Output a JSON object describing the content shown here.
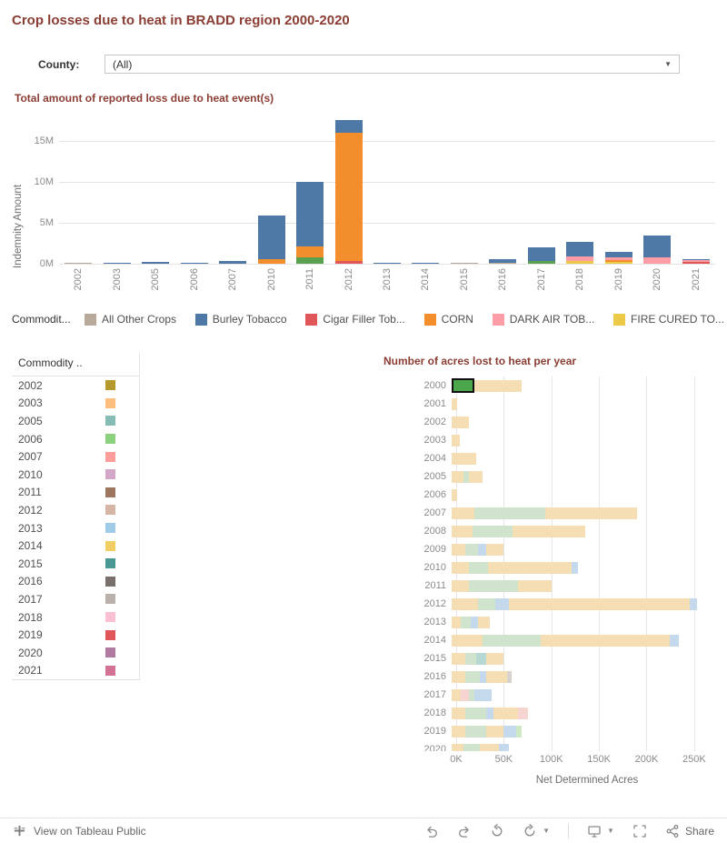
{
  "title": "Crop losses due to heat in BRADD region 2000-2020",
  "filter": {
    "label": "County:",
    "value": "(All)"
  },
  "toolbar": {
    "view_label": "View on Tableau Public",
    "share_label": "Share"
  },
  "commodity_legend": {
    "title": "Commodit...",
    "items": [
      {
        "label": "All Other Crops",
        "color": "#b9a99b"
      },
      {
        "label": "Burley Tobacco",
        "color": "#4e79a7"
      },
      {
        "label": "Cigar Filler Tob...",
        "color": "#e15759"
      },
      {
        "label": "CORN",
        "color": "#f28e2b"
      },
      {
        "label": "DARK AIR TOB...",
        "color": "#ff9da7"
      },
      {
        "label": "FIRE CURED TO...",
        "color": "#edc948"
      }
    ]
  },
  "year_legend": {
    "title": "Commodity ..",
    "items": [
      {
        "label": "2002",
        "color": "#b6992d"
      },
      {
        "label": "2003",
        "color": "#ffbe7d"
      },
      {
        "label": "2005",
        "color": "#86bcb6"
      },
      {
        "label": "2006",
        "color": "#8cd17d"
      },
      {
        "label": "2007",
        "color": "#ff9d9a"
      },
      {
        "label": "2010",
        "color": "#d4a6c8"
      },
      {
        "label": "2011",
        "color": "#9d7660"
      },
      {
        "label": "2012",
        "color": "#d7b5a6"
      },
      {
        "label": "2013",
        "color": "#a0cbe8"
      },
      {
        "label": "2014",
        "color": "#f1ce63"
      },
      {
        "label": "2015",
        "color": "#499894"
      },
      {
        "label": "2016",
        "color": "#79706e"
      },
      {
        "label": "2017",
        "color": "#bab0ac"
      },
      {
        "label": "2018",
        "color": "#fabfd2"
      },
      {
        "label": "2019",
        "color": "#e15759"
      },
      {
        "label": "2020",
        "color": "#b07aa1"
      },
      {
        "label": "2021",
        "color": "#d37295"
      }
    ]
  },
  "chart_data": [
    {
      "type": "bar",
      "orientation": "vertical",
      "stacked": true,
      "title": "Total amount of reported loss due to heat event(s)",
      "ylabel": "Indemnity Amount",
      "xlabel": "",
      "value_unit": "M (millions, indemnity dollars)",
      "ylim": [
        0,
        18
      ],
      "grid": true,
      "yticks": [
        {
          "label": "0M",
          "value": 0
        },
        {
          "label": "5M",
          "value": 5
        },
        {
          "label": "10M",
          "value": 10
        },
        {
          "label": "15M",
          "value": 15
        }
      ],
      "bars": [
        {
          "category": "2002",
          "segments": [
            {
              "color": "#b9a99b",
              "value": 0.06
            }
          ]
        },
        {
          "category": "2003",
          "segments": [
            {
              "color": "#4e79a7",
              "value": 0.05
            }
          ]
        },
        {
          "category": "2005",
          "segments": [
            {
              "color": "#4e79a7",
              "value": 0.22
            }
          ]
        },
        {
          "category": "2006",
          "segments": [
            {
              "color": "#4e79a7",
              "value": 0.05
            }
          ]
        },
        {
          "category": "2007",
          "segments": [
            {
              "color": "#4e79a7",
              "value": 0.33
            }
          ]
        },
        {
          "category": "2010",
          "segments": [
            {
              "color": "#f28e2b",
              "value": 0.55
            },
            {
              "color": "#4e79a7",
              "value": 5.3
            }
          ]
        },
        {
          "category": "2011",
          "segments": [
            {
              "color": "#59a14f",
              "value": 0.75
            },
            {
              "color": "#f28e2b",
              "value": 1.35
            },
            {
              "color": "#4e79a7",
              "value": 7.9
            }
          ]
        },
        {
          "category": "2012",
          "segments": [
            {
              "color": "#e15759",
              "value": 0.3
            },
            {
              "color": "#f28e2b",
              "value": 15.75
            },
            {
              "color": "#4e79a7",
              "value": 1.55
            }
          ]
        },
        {
          "category": "2013",
          "segments": [
            {
              "color": "#4e79a7",
              "value": 0.05
            }
          ]
        },
        {
          "category": "2014",
          "segments": [
            {
              "color": "#4e79a7",
              "value": 0.05
            }
          ]
        },
        {
          "category": "2015",
          "segments": [
            {
              "color": "#b9a99b",
              "value": 0.13
            }
          ]
        },
        {
          "category": "2016",
          "segments": [
            {
              "color": "#b9a99b",
              "value": 0.08
            },
            {
              "color": "#4e79a7",
              "value": 0.45
            }
          ]
        },
        {
          "category": "2017",
          "segments": [
            {
              "color": "#59a14f",
              "value": 0.3
            },
            {
              "color": "#4e79a7",
              "value": 1.75
            }
          ]
        },
        {
          "category": "2018",
          "segments": [
            {
              "color": "#edc948",
              "value": 0.3
            },
            {
              "color": "#ff9da7",
              "value": 0.55
            },
            {
              "color": "#4e79a7",
              "value": 1.85
            }
          ]
        },
        {
          "category": "2019",
          "segments": [
            {
              "color": "#edc948",
              "value": 0.2
            },
            {
              "color": "#f28e2b",
              "value": 0.2
            },
            {
              "color": "#ff9da7",
              "value": 0.4
            },
            {
              "color": "#4e79a7",
              "value": 0.6
            }
          ]
        },
        {
          "category": "2020",
          "segments": [
            {
              "color": "#ff9da7",
              "value": 0.8
            },
            {
              "color": "#4e79a7",
              "value": 2.7
            }
          ]
        },
        {
          "category": "2021",
          "segments": [
            {
              "color": "#e15759",
              "value": 0.2
            },
            {
              "color": "#ff9da7",
              "value": 0.3
            },
            {
              "color": "#4e79a7",
              "value": 0.05
            }
          ]
        }
      ]
    },
    {
      "type": "bar",
      "orientation": "horizontal",
      "stacked": true,
      "title": "Number of acres lost to heat per year",
      "xlabel": "Net Determined Acres",
      "value_unit": "K (thousand acres)",
      "xlim": [
        0,
        275
      ],
      "grid": true,
      "xticks": [
        {
          "label": "0K",
          "value": 0
        },
        {
          "label": "50K",
          "value": 50
        },
        {
          "label": "100K",
          "value": 100
        },
        {
          "label": "150K",
          "value": 150
        },
        {
          "label": "200K",
          "value": 200
        },
        {
          "label": "250K",
          "value": 250
        }
      ],
      "bars": [
        {
          "category": "2000",
          "segments": [
            {
              "color": "#4ca64c",
              "value": 24,
              "selected": true
            },
            {
              "color": "#f5ddb4",
              "value": 50
            }
          ]
        },
        {
          "category": "2001",
          "segments": [
            {
              "color": "#f5ddb4",
              "value": 6
            }
          ]
        },
        {
          "category": "2002",
          "segments": [
            {
              "color": "#f5ddb4",
              "value": 18
            }
          ]
        },
        {
          "category": "2003",
          "segments": [
            {
              "color": "#f5ddb4",
              "value": 9
            }
          ]
        },
        {
          "category": "2004",
          "segments": [
            {
              "color": "#f5ddb4",
              "value": 26
            }
          ]
        },
        {
          "category": "2005",
          "segments": [
            {
              "color": "#f5ddb4",
              "value": 12
            },
            {
              "color": "#cfe3cd",
              "value": 6
            },
            {
              "color": "#f5ddb4",
              "value": 14
            }
          ]
        },
        {
          "category": "2006",
          "segments": [
            {
              "color": "#f5ddb4",
              "value": 6
            }
          ]
        },
        {
          "category": "2007",
          "segments": [
            {
              "color": "#f5ddb4",
              "value": 24
            },
            {
              "color": "#cfe3cd",
              "value": 74
            },
            {
              "color": "#f5ddb4",
              "value": 97
            }
          ]
        },
        {
          "category": "2008",
          "segments": [
            {
              "color": "#f5ddb4",
              "value": 22
            },
            {
              "color": "#cfe3cd",
              "value": 42
            },
            {
              "color": "#f5ddb4",
              "value": 76
            }
          ]
        },
        {
          "category": "2009",
          "segments": [
            {
              "color": "#f5ddb4",
              "value": 14
            },
            {
              "color": "#cfe3cd",
              "value": 14
            },
            {
              "color": "#c4d9ec",
              "value": 8
            },
            {
              "color": "#f5ddb4",
              "value": 18
            }
          ]
        },
        {
          "category": "2010",
          "segments": [
            {
              "color": "#f5ddb4",
              "value": 18
            },
            {
              "color": "#cfe3cd",
              "value": 20
            },
            {
              "color": "#f5ddb4",
              "value": 88
            },
            {
              "color": "#c4d9ec",
              "value": 7
            }
          ]
        },
        {
          "category": "2011",
          "segments": [
            {
              "color": "#f5ddb4",
              "value": 18
            },
            {
              "color": "#cfe3cd",
              "value": 52
            },
            {
              "color": "#f5ddb4",
              "value": 35
            }
          ]
        },
        {
          "category": "2012",
          "segments": [
            {
              "color": "#f5ddb4",
              "value": 28
            },
            {
              "color": "#cfe3cd",
              "value": 18
            },
            {
              "color": "#c4d9ec",
              "value": 14
            },
            {
              "color": "#f5ddb4",
              "value": 190
            },
            {
              "color": "#c4d9ec",
              "value": 8
            }
          ]
        },
        {
          "category": "2013",
          "segments": [
            {
              "color": "#f5ddb4",
              "value": 10
            },
            {
              "color": "#cfe3cd",
              "value": 10
            },
            {
              "color": "#c4d9ec",
              "value": 8
            },
            {
              "color": "#f5ddb4",
              "value": 12
            }
          ]
        },
        {
          "category": "2014",
          "segments": [
            {
              "color": "#f5ddb4",
              "value": 32
            },
            {
              "color": "#cfe3cd",
              "value": 62
            },
            {
              "color": "#f5ddb4",
              "value": 135
            },
            {
              "color": "#c4d9ec",
              "value": 10
            }
          ]
        },
        {
          "category": "2015",
          "segments": [
            {
              "color": "#f5ddb4",
              "value": 14
            },
            {
              "color": "#cfe3cd",
              "value": 12
            },
            {
              "color": "#b7d7d5",
              "value": 10
            },
            {
              "color": "#f5ddb4",
              "value": 18
            }
          ]
        },
        {
          "category": "2016",
          "segments": [
            {
              "color": "#f5ddb4",
              "value": 14
            },
            {
              "color": "#cfe3cd",
              "value": 16
            },
            {
              "color": "#c4d9ec",
              "value": 6
            },
            {
              "color": "#f5ddb4",
              "value": 22
            },
            {
              "color": "#d8d3cf",
              "value": 5
            }
          ]
        },
        {
          "category": "2017",
          "segments": [
            {
              "color": "#f5ddb4",
              "value": 10
            },
            {
              "color": "#f6d4d2",
              "value": 8
            },
            {
              "color": "#cfe3cd",
              "value": 6
            },
            {
              "color": "#c4d9ec",
              "value": 18
            }
          ]
        },
        {
          "category": "2018",
          "segments": [
            {
              "color": "#f5ddb4",
              "value": 14
            },
            {
              "color": "#cfe3cd",
              "value": 22
            },
            {
              "color": "#c4d9ec",
              "value": 8
            },
            {
              "color": "#f5ddb4",
              "value": 26
            },
            {
              "color": "#f6d4d2",
              "value": 10
            }
          ]
        },
        {
          "category": "2019",
          "segments": [
            {
              "color": "#f5ddb4",
              "value": 14
            },
            {
              "color": "#cfe3cd",
              "value": 22
            },
            {
              "color": "#f5ddb4",
              "value": 18
            },
            {
              "color": "#c4d9ec",
              "value": 14
            },
            {
              "color": "#cfe8c5",
              "value": 6
            }
          ]
        },
        {
          "category": "2020",
          "segments": [
            {
              "color": "#f5ddb4",
              "value": 12
            },
            {
              "color": "#cfe3cd",
              "value": 18
            },
            {
              "color": "#f5ddb4",
              "value": 20
            },
            {
              "color": "#c4d9ec",
              "value": 10
            }
          ]
        }
      ]
    }
  ]
}
